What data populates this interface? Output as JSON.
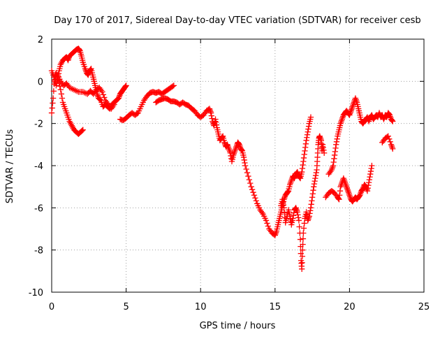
{
  "chart_data": {
    "type": "scatter",
    "title": "Day 170 of 2017, Sidereal Day-to-day VTEC variation (SDTVAR) for receiver cesb",
    "xlabel": "GPS time / hours",
    "ylabel": "SDTVAR / TECUs",
    "xlim": [
      0,
      25
    ],
    "ylim": [
      -10,
      2
    ],
    "x_ticks": [
      0,
      5,
      10,
      15,
      20,
      25
    ],
    "x_tick_labels": [
      "0",
      "5",
      "10",
      "15",
      "20",
      "25"
    ],
    "y_ticks": [
      -10,
      -8,
      -6,
      -4,
      -2,
      0,
      2
    ],
    "y_tick_labels": [
      "-10",
      "-8",
      "-6",
      "-4",
      "-2",
      "0",
      "2"
    ],
    "grid": true,
    "marker": "plus",
    "color": "#ff0000",
    "series": [
      {
        "name": "segment-1",
        "points": [
          [
            0.0,
            -1.5
          ],
          [
            0.1,
            -0.8
          ],
          [
            0.2,
            0.2
          ],
          [
            0.3,
            0.4
          ],
          [
            0.45,
            0.1
          ],
          [
            0.6,
            -0.4
          ],
          [
            0.75,
            -1.0
          ],
          [
            0.9,
            -1.3
          ],
          [
            1.05,
            -1.6
          ],
          [
            1.2,
            -1.9
          ],
          [
            1.35,
            -2.1
          ],
          [
            1.5,
            -2.3
          ],
          [
            1.65,
            -2.4
          ],
          [
            1.8,
            -2.5
          ],
          [
            1.95,
            -2.4
          ],
          [
            2.1,
            -2.3
          ]
        ]
      },
      {
        "name": "segment-2",
        "points": [
          [
            0.0,
            0.5
          ],
          [
            0.15,
            0.2
          ],
          [
            0.3,
            -0.2
          ],
          [
            0.4,
            0.1
          ],
          [
            0.5,
            0.5
          ],
          [
            0.6,
            0.8
          ],
          [
            0.75,
            1.0
          ],
          [
            0.9,
            1.1
          ],
          [
            1.0,
            1.15
          ],
          [
            1.1,
            1.0
          ],
          [
            1.2,
            1.2
          ],
          [
            1.35,
            1.3
          ],
          [
            1.5,
            1.4
          ],
          [
            1.65,
            1.5
          ],
          [
            1.8,
            1.55
          ],
          [
            1.9,
            1.45
          ],
          [
            2.0,
            1.2
          ],
          [
            2.1,
            0.9
          ],
          [
            2.25,
            0.6
          ],
          [
            2.35,
            0.4
          ],
          [
            2.45,
            0.3
          ],
          [
            2.55,
            0.5
          ],
          [
            2.65,
            0.6
          ],
          [
            2.75,
            0.3
          ],
          [
            2.85,
            0.0
          ],
          [
            2.95,
            -0.3
          ],
          [
            3.05,
            -0.6
          ],
          [
            3.15,
            -0.8
          ],
          [
            3.3,
            -0.9
          ],
          [
            3.45,
            -1.2
          ],
          [
            3.6,
            -1.1
          ],
          [
            3.75,
            -1.2
          ],
          [
            3.9,
            -1.3
          ],
          [
            4.05,
            -1.1
          ],
          [
            4.2,
            -1.0
          ],
          [
            4.35,
            -0.9
          ],
          [
            4.5,
            -0.8
          ],
          [
            4.6,
            -0.6
          ],
          [
            4.7,
            -0.5
          ],
          [
            4.8,
            -0.4
          ],
          [
            4.9,
            -0.3
          ],
          [
            5.0,
            -0.2
          ]
        ]
      },
      {
        "name": "segment-3",
        "points": [
          [
            0.2,
            0.0
          ],
          [
            0.4,
            0.3
          ],
          [
            0.6,
            0.0
          ],
          [
            0.8,
            -0.2
          ],
          [
            1.0,
            -0.1
          ],
          [
            1.2,
            -0.3
          ],
          [
            1.5,
            -0.4
          ],
          [
            1.8,
            -0.5
          ],
          [
            2.1,
            -0.5
          ],
          [
            2.4,
            -0.6
          ],
          [
            2.6,
            -0.45
          ],
          [
            2.8,
            -0.6
          ],
          [
            3.0,
            -0.4
          ],
          [
            3.2,
            -0.3
          ],
          [
            3.4,
            -0.5
          ],
          [
            3.6,
            -0.9
          ],
          [
            3.8,
            -1.1
          ],
          [
            4.0,
            -1.3
          ],
          [
            4.2,
            -1.1
          ]
        ]
      },
      {
        "name": "segment-4",
        "points": [
          [
            4.6,
            -1.8
          ],
          [
            4.8,
            -1.85
          ],
          [
            5.0,
            -1.75
          ],
          [
            5.2,
            -1.6
          ],
          [
            5.4,
            -1.5
          ],
          [
            5.6,
            -1.6
          ],
          [
            5.8,
            -1.5
          ],
          [
            6.0,
            -1.2
          ],
          [
            6.2,
            -0.9
          ],
          [
            6.4,
            -0.7
          ],
          [
            6.6,
            -0.55
          ],
          [
            6.8,
            -0.5
          ],
          [
            7.0,
            -0.55
          ],
          [
            7.2,
            -0.5
          ],
          [
            7.4,
            -0.6
          ],
          [
            7.6,
            -0.5
          ],
          [
            7.8,
            -0.4
          ],
          [
            8.0,
            -0.3
          ],
          [
            8.2,
            -0.2
          ]
        ]
      },
      {
        "name": "segment-5",
        "points": [
          [
            7.0,
            -1.0
          ],
          [
            7.2,
            -0.9
          ],
          [
            7.4,
            -0.85
          ],
          [
            7.6,
            -0.8
          ],
          [
            7.8,
            -0.85
          ],
          [
            8.0,
            -0.95
          ],
          [
            8.2,
            -0.95
          ],
          [
            8.4,
            -1.0
          ],
          [
            8.6,
            -1.1
          ],
          [
            8.8,
            -1.0
          ],
          [
            9.0,
            -1.1
          ],
          [
            9.2,
            -1.15
          ],
          [
            9.4,
            -1.3
          ],
          [
            9.6,
            -1.4
          ],
          [
            9.8,
            -1.6
          ],
          [
            10.0,
            -1.7
          ],
          [
            10.2,
            -1.6
          ],
          [
            10.4,
            -1.4
          ],
          [
            10.6,
            -1.3
          ],
          [
            10.7,
            -1.5
          ],
          [
            10.8,
            -1.9
          ],
          [
            10.9,
            -2.1
          ],
          [
            11.0,
            -1.8
          ],
          [
            11.1,
            -2.2
          ],
          [
            11.2,
            -2.5
          ],
          [
            11.3,
            -2.8
          ],
          [
            11.4,
            -2.7
          ],
          [
            11.5,
            -2.6
          ],
          [
            11.6,
            -2.9
          ],
          [
            11.7,
            -3.1
          ],
          [
            11.8,
            -3.0
          ],
          [
            11.9,
            -3.2
          ],
          [
            12.0,
            -3.4
          ],
          [
            12.1,
            -3.8
          ],
          [
            12.2,
            -3.5
          ],
          [
            12.3,
            -3.3
          ],
          [
            12.4,
            -3.1
          ],
          [
            12.5,
            -2.9
          ],
          [
            12.6,
            -3.0
          ],
          [
            12.7,
            -3.2
          ],
          [
            12.8,
            -3.3
          ],
          [
            12.9,
            -3.6
          ],
          [
            13.0,
            -4.0
          ],
          [
            13.2,
            -4.5
          ],
          [
            13.4,
            -5.0
          ],
          [
            13.6,
            -5.4
          ],
          [
            13.8,
            -5.8
          ],
          [
            14.0,
            -6.1
          ],
          [
            14.2,
            -6.3
          ],
          [
            14.4,
            -6.6
          ],
          [
            14.6,
            -7.0
          ],
          [
            14.8,
            -7.2
          ],
          [
            15.0,
            -7.3
          ],
          [
            15.1,
            -7.1
          ],
          [
            15.2,
            -6.8
          ],
          [
            15.3,
            -6.5
          ],
          [
            15.4,
            -6.2
          ],
          [
            15.5,
            -5.9
          ],
          [
            15.6,
            -5.6
          ],
          [
            15.7,
            -5.4
          ],
          [
            15.8,
            -5.3
          ],
          [
            15.9,
            -5.2
          ],
          [
            16.0,
            -4.9
          ],
          [
            16.1,
            -4.7
          ],
          [
            16.2,
            -4.5
          ],
          [
            16.3,
            -4.6
          ],
          [
            16.4,
            -4.4
          ],
          [
            16.5,
            -4.3
          ],
          [
            16.6,
            -4.5
          ],
          [
            16.7,
            -4.6
          ],
          [
            16.8,
            -4.3
          ],
          [
            16.9,
            -3.8
          ],
          [
            17.0,
            -3.3
          ],
          [
            17.1,
            -2.8
          ],
          [
            17.2,
            -2.4
          ],
          [
            17.3,
            -2.0
          ],
          [
            17.4,
            -1.7
          ]
        ]
      },
      {
        "name": "segment-6",
        "points": [
          [
            15.4,
            -5.9
          ],
          [
            15.5,
            -5.6
          ],
          [
            15.6,
            -6.0
          ],
          [
            15.7,
            -6.7
          ],
          [
            15.8,
            -6.4
          ],
          [
            15.9,
            -6.1
          ],
          [
            16.0,
            -6.4
          ],
          [
            16.1,
            -6.8
          ],
          [
            16.2,
            -6.5
          ],
          [
            16.3,
            -6.1
          ],
          [
            16.4,
            -6.0
          ],
          [
            16.5,
            -6.2
          ],
          [
            16.6,
            -6.6
          ],
          [
            16.7,
            -7.5
          ],
          [
            16.75,
            -8.5
          ],
          [
            16.8,
            -8.9
          ],
          [
            16.85,
            -8.0
          ],
          [
            16.9,
            -7.2
          ],
          [
            17.0,
            -6.5
          ],
          [
            17.1,
            -6.2
          ],
          [
            17.2,
            -6.6
          ],
          [
            17.3,
            -6.4
          ],
          [
            17.4,
            -6.0
          ],
          [
            17.5,
            -5.5
          ],
          [
            17.6,
            -5.0
          ],
          [
            17.7,
            -4.6
          ],
          [
            17.8,
            -4.2
          ],
          [
            17.85,
            -3.6
          ],
          [
            17.9,
            -3.0
          ],
          [
            17.95,
            -2.7
          ],
          [
            18.0,
            -2.6
          ],
          [
            18.1,
            -2.8
          ],
          [
            18.15,
            -3.3
          ],
          [
            18.2,
            -3.0
          ],
          [
            18.3,
            -3.4
          ]
        ]
      },
      {
        "name": "segment-7",
        "points": [
          [
            18.6,
            -4.4
          ],
          [
            18.8,
            -4.2
          ],
          [
            18.9,
            -4.0
          ],
          [
            19.0,
            -3.5
          ],
          [
            19.1,
            -3.0
          ],
          [
            19.2,
            -2.6
          ],
          [
            19.3,
            -2.3
          ],
          [
            19.4,
            -2.0
          ],
          [
            19.5,
            -1.8
          ],
          [
            19.6,
            -1.6
          ],
          [
            19.7,
            -1.5
          ],
          [
            19.8,
            -1.4
          ],
          [
            19.9,
            -1.5
          ],
          [
            20.0,
            -1.6
          ],
          [
            20.1,
            -1.4
          ],
          [
            20.2,
            -1.2
          ],
          [
            20.3,
            -1.0
          ],
          [
            20.4,
            -0.8
          ],
          [
            20.5,
            -1.0
          ],
          [
            20.6,
            -1.3
          ],
          [
            20.7,
            -1.6
          ],
          [
            20.8,
            -1.9
          ],
          [
            20.9,
            -2.0
          ],
          [
            21.0,
            -1.9
          ],
          [
            21.1,
            -1.8
          ],
          [
            21.2,
            -1.7
          ],
          [
            21.3,
            -1.9
          ],
          [
            21.4,
            -1.7
          ],
          [
            21.5,
            -1.6
          ],
          [
            21.6,
            -1.8
          ],
          [
            21.7,
            -1.7
          ],
          [
            21.8,
            -1.6
          ],
          [
            21.9,
            -1.7
          ],
          [
            22.0,
            -1.5
          ],
          [
            22.1,
            -1.7
          ],
          [
            22.2,
            -1.6
          ],
          [
            22.3,
            -1.8
          ],
          [
            22.4,
            -1.6
          ],
          [
            22.5,
            -1.7
          ],
          [
            22.6,
            -1.5
          ],
          [
            22.7,
            -1.6
          ],
          [
            22.8,
            -1.8
          ],
          [
            22.9,
            -1.9
          ]
        ]
      },
      {
        "name": "segment-8",
        "points": [
          [
            18.4,
            -5.5
          ],
          [
            18.6,
            -5.3
          ],
          [
            18.8,
            -5.2
          ],
          [
            19.0,
            -5.3
          ],
          [
            19.2,
            -5.5
          ],
          [
            19.3,
            -5.6
          ],
          [
            19.4,
            -5.0
          ],
          [
            19.5,
            -4.8
          ],
          [
            19.6,
            -4.6
          ],
          [
            19.7,
            -4.8
          ],
          [
            19.8,
            -5.0
          ],
          [
            19.9,
            -5.2
          ],
          [
            20.0,
            -5.4
          ],
          [
            20.1,
            -5.6
          ],
          [
            20.2,
            -5.7
          ],
          [
            20.3,
            -5.6
          ],
          [
            20.4,
            -5.5
          ],
          [
            20.5,
            -5.6
          ],
          [
            20.6,
            -5.5
          ],
          [
            20.7,
            -5.4
          ],
          [
            20.8,
            -5.2
          ],
          [
            20.9,
            -5.1
          ],
          [
            21.0,
            -4.9
          ],
          [
            21.1,
            -5.0
          ],
          [
            21.2,
            -5.2
          ],
          [
            21.3,
            -4.8
          ],
          [
            21.4,
            -4.4
          ],
          [
            21.5,
            -4.0
          ]
        ]
      },
      {
        "name": "segment-9",
        "points": [
          [
            22.2,
            -2.9
          ],
          [
            22.4,
            -2.7
          ],
          [
            22.6,
            -2.6
          ],
          [
            22.8,
            -3.0
          ],
          [
            22.9,
            -3.2
          ]
        ]
      }
    ]
  }
}
